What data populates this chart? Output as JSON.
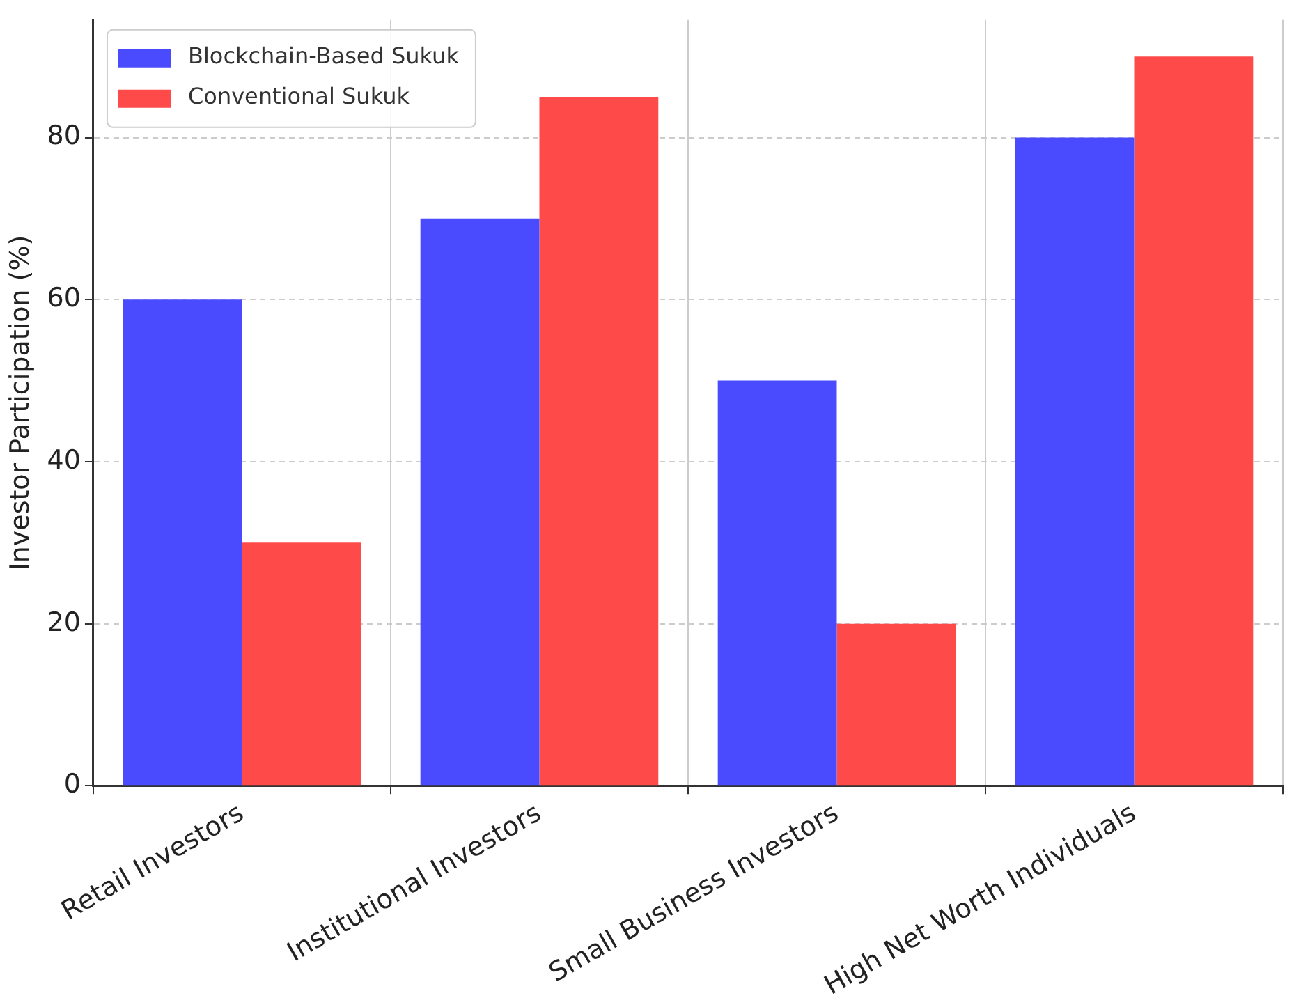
{
  "chart_data": {
    "type": "bar",
    "ylabel": "Investor Participation (%)",
    "categories": [
      "Retail Investors",
      "Institutional Investors",
      "Small Business Investors",
      "High Net Worth Individuals"
    ],
    "series": [
      {
        "name": "Blockchain-Based Sukuk",
        "color": "#4a4aff",
        "values": [
          60,
          70,
          50,
          80
        ]
      },
      {
        "name": "Conventional Sukuk",
        "color": "#ff4a4a",
        "values": [
          30,
          85,
          20,
          90
        ]
      }
    ],
    "ylim": [
      0,
      94.5
    ],
    "yticks": [
      0,
      20,
      40,
      60,
      80
    ],
    "grid": true,
    "legend": "top left"
  }
}
